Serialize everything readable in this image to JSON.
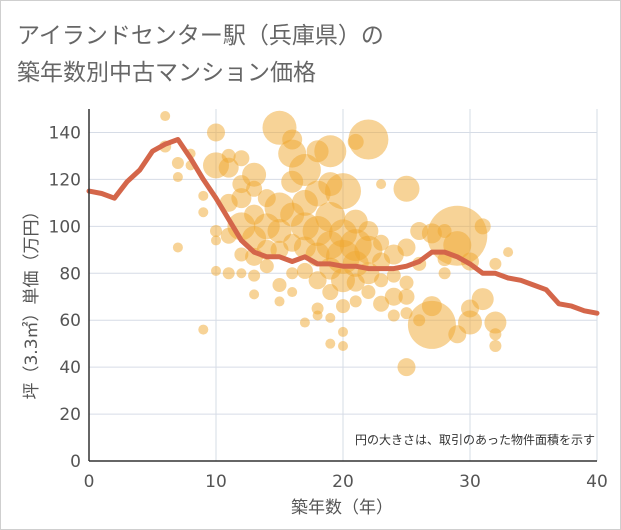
{
  "header": {
    "title_line1": "アイランドセンター駅（兵庫県）の",
    "title_line2": "築年数別中古マンション価格"
  },
  "chart_data": {
    "type": "scatter",
    "title": "アイランドセンター駅（兵庫県）の築年数別中古マンション価格",
    "xlabel": "築年数（年）",
    "ylabel": "坪（3.3㎡）単価（万円）",
    "xlim": [
      0,
      40
    ],
    "ylim": [
      0,
      150
    ],
    "xticks": [
      0,
      10,
      20,
      30,
      40
    ],
    "yticks": [
      0,
      20,
      40,
      60,
      80,
      100,
      120,
      140
    ],
    "grid": true,
    "annotation": "円の大きさは、取引のあった物件面積を示す",
    "colors": {
      "bubble": "#f0a830",
      "line": "#d4664a",
      "grid": "#d6dce6"
    },
    "series": [
      {
        "kind": "bubble",
        "points": [
          {
            "x": 6,
            "y": 147,
            "s": 5
          },
          {
            "x": 6,
            "y": 134,
            "s": 6
          },
          {
            "x": 7,
            "y": 127,
            "s": 6
          },
          {
            "x": 7,
            "y": 121,
            "s": 5
          },
          {
            "x": 7,
            "y": 91,
            "s": 5
          },
          {
            "x": 8,
            "y": 126,
            "s": 5
          },
          {
            "x": 8,
            "y": 131,
            "s": 5
          },
          {
            "x": 9,
            "y": 56,
            "s": 5
          },
          {
            "x": 9,
            "y": 106,
            "s": 5
          },
          {
            "x": 9,
            "y": 113,
            "s": 5
          },
          {
            "x": 10,
            "y": 140,
            "s": 9
          },
          {
            "x": 10,
            "y": 126,
            "s": 13
          },
          {
            "x": 10,
            "y": 98,
            "s": 6
          },
          {
            "x": 10,
            "y": 94,
            "s": 5
          },
          {
            "x": 10,
            "y": 81,
            "s": 5
          },
          {
            "x": 11,
            "y": 130,
            "s": 7
          },
          {
            "x": 11,
            "y": 125,
            "s": 10
          },
          {
            "x": 11,
            "y": 110,
            "s": 9
          },
          {
            "x": 11,
            "y": 96,
            "s": 8
          },
          {
            "x": 11,
            "y": 80,
            "s": 6
          },
          {
            "x": 12,
            "y": 129,
            "s": 8
          },
          {
            "x": 12,
            "y": 118,
            "s": 9
          },
          {
            "x": 12,
            "y": 112,
            "s": 10
          },
          {
            "x": 12,
            "y": 100,
            "s": 14
          },
          {
            "x": 12,
            "y": 88,
            "s": 7
          },
          {
            "x": 12,
            "y": 80,
            "s": 5
          },
          {
            "x": 13,
            "y": 122,
            "s": 12
          },
          {
            "x": 13,
            "y": 116,
            "s": 8
          },
          {
            "x": 13,
            "y": 105,
            "s": 10
          },
          {
            "x": 13,
            "y": 95,
            "s": 12
          },
          {
            "x": 13,
            "y": 87,
            "s": 9
          },
          {
            "x": 13,
            "y": 79,
            "s": 6
          },
          {
            "x": 13,
            "y": 71,
            "s": 5
          },
          {
            "x": 14,
            "y": 112,
            "s": 9
          },
          {
            "x": 14,
            "y": 100,
            "s": 13
          },
          {
            "x": 14,
            "y": 90,
            "s": 10
          },
          {
            "x": 14,
            "y": 83,
            "s": 7
          },
          {
            "x": 15,
            "y": 142,
            "s": 17
          },
          {
            "x": 15,
            "y": 108,
            "s": 15
          },
          {
            "x": 15,
            "y": 98,
            "s": 12
          },
          {
            "x": 15,
            "y": 90,
            "s": 9
          },
          {
            "x": 15,
            "y": 75,
            "s": 7
          },
          {
            "x": 15,
            "y": 68,
            "s": 5
          },
          {
            "x": 16,
            "y": 137,
            "s": 10
          },
          {
            "x": 16,
            "y": 131,
            "s": 14
          },
          {
            "x": 16,
            "y": 119,
            "s": 11
          },
          {
            "x": 16,
            "y": 105,
            "s": 12
          },
          {
            "x": 16,
            "y": 93,
            "s": 9
          },
          {
            "x": 16,
            "y": 80,
            "s": 6
          },
          {
            "x": 16,
            "y": 72,
            "s": 5
          },
          {
            "x": 17,
            "y": 124,
            "s": 16
          },
          {
            "x": 17,
            "y": 110,
            "s": 13
          },
          {
            "x": 17,
            "y": 100,
            "s": 14
          },
          {
            "x": 17,
            "y": 91,
            "s": 11
          },
          {
            "x": 17,
            "y": 81,
            "s": 8
          },
          {
            "x": 17,
            "y": 59,
            "s": 5
          },
          {
            "x": 18,
            "y": 132,
            "s": 11
          },
          {
            "x": 18,
            "y": 114,
            "s": 13
          },
          {
            "x": 18,
            "y": 98,
            "s": 15
          },
          {
            "x": 18,
            "y": 88,
            "s": 12
          },
          {
            "x": 18,
            "y": 77,
            "s": 9
          },
          {
            "x": 18,
            "y": 65,
            "s": 6
          },
          {
            "x": 18,
            "y": 62,
            "s": 5
          },
          {
            "x": 19,
            "y": 132,
            "s": 16
          },
          {
            "x": 19,
            "y": 118,
            "s": 12
          },
          {
            "x": 19,
            "y": 104,
            "s": 15
          },
          {
            "x": 19,
            "y": 92,
            "s": 14
          },
          {
            "x": 19,
            "y": 82,
            "s": 11
          },
          {
            "x": 19,
            "y": 72,
            "s": 8
          },
          {
            "x": 19,
            "y": 61,
            "s": 5
          },
          {
            "x": 19,
            "y": 50,
            "s": 5
          },
          {
            "x": 20,
            "y": 115,
            "s": 18
          },
          {
            "x": 20,
            "y": 97,
            "s": 14
          },
          {
            "x": 20,
            "y": 87,
            "s": 17
          },
          {
            "x": 20,
            "y": 77,
            "s": 12
          },
          {
            "x": 20,
            "y": 66,
            "s": 7
          },
          {
            "x": 20,
            "y": 55,
            "s": 5
          },
          {
            "x": 20,
            "y": 49,
            "s": 5
          },
          {
            "x": 21,
            "y": 136,
            "s": 8
          },
          {
            "x": 21,
            "y": 102,
            "s": 12
          },
          {
            "x": 21,
            "y": 92,
            "s": 16
          },
          {
            "x": 21,
            "y": 84,
            "s": 13
          },
          {
            "x": 21,
            "y": 76,
            "s": 9
          },
          {
            "x": 21,
            "y": 68,
            "s": 6
          },
          {
            "x": 22,
            "y": 137,
            "s": 20
          },
          {
            "x": 22,
            "y": 98,
            "s": 10
          },
          {
            "x": 22,
            "y": 90,
            "s": 14
          },
          {
            "x": 22,
            "y": 80,
            "s": 11
          },
          {
            "x": 22,
            "y": 72,
            "s": 7
          },
          {
            "x": 23,
            "y": 118,
            "s": 5
          },
          {
            "x": 23,
            "y": 93,
            "s": 8
          },
          {
            "x": 23,
            "y": 85,
            "s": 9
          },
          {
            "x": 23,
            "y": 77,
            "s": 7
          },
          {
            "x": 23,
            "y": 67,
            "s": 8
          },
          {
            "x": 24,
            "y": 88,
            "s": 10
          },
          {
            "x": 24,
            "y": 79,
            "s": 7
          },
          {
            "x": 24,
            "y": 70,
            "s": 9
          },
          {
            "x": 24,
            "y": 62,
            "s": 6
          },
          {
            "x": 25,
            "y": 116,
            "s": 13
          },
          {
            "x": 25,
            "y": 91,
            "s": 9
          },
          {
            "x": 25,
            "y": 76,
            "s": 7
          },
          {
            "x": 25,
            "y": 70,
            "s": 8
          },
          {
            "x": 25,
            "y": 63,
            "s": 6
          },
          {
            "x": 25,
            "y": 40,
            "s": 9
          },
          {
            "x": 26,
            "y": 98,
            "s": 9
          },
          {
            "x": 26,
            "y": 84,
            "s": 7
          },
          {
            "x": 26,
            "y": 60,
            "s": 6
          },
          {
            "x": 27,
            "y": 97,
            "s": 10
          },
          {
            "x": 27,
            "y": 66,
            "s": 10
          },
          {
            "x": 27,
            "y": 58,
            "s": 24
          },
          {
            "x": 28,
            "y": 98,
            "s": 7
          },
          {
            "x": 28,
            "y": 86,
            "s": 7
          },
          {
            "x": 28,
            "y": 80,
            "s": 6
          },
          {
            "x": 29,
            "y": 96,
            "s": 30
          },
          {
            "x": 29,
            "y": 92,
            "s": 14
          },
          {
            "x": 29,
            "y": 54,
            "s": 9
          },
          {
            "x": 30,
            "y": 85,
            "s": 9
          },
          {
            "x": 30,
            "y": 65,
            "s": 9
          },
          {
            "x": 30,
            "y": 59,
            "s": 12
          },
          {
            "x": 31,
            "y": 100,
            "s": 8
          },
          {
            "x": 31,
            "y": 69,
            "s": 11
          },
          {
            "x": 32,
            "y": 84,
            "s": 6
          },
          {
            "x": 32,
            "y": 59,
            "s": 11
          },
          {
            "x": 32,
            "y": 54,
            "s": 6
          },
          {
            "x": 32,
            "y": 49,
            "s": 6
          },
          {
            "x": 33,
            "y": 89,
            "s": 5
          }
        ]
      },
      {
        "kind": "line",
        "x": [
          0,
          1,
          2,
          3,
          4,
          5,
          6,
          7,
          8,
          9,
          10,
          11,
          12,
          13,
          14,
          15,
          16,
          17,
          18,
          19,
          20,
          21,
          22,
          23,
          24,
          25,
          26,
          27,
          28,
          29,
          30,
          31,
          32,
          33,
          34,
          35,
          36,
          37,
          38,
          39,
          40
        ],
        "y": [
          115,
          114,
          112,
          119,
          124,
          132,
          135,
          137,
          129,
          120,
          112,
          103,
          94,
          89,
          87,
          87,
          85,
          87,
          84,
          84,
          83,
          83,
          82,
          82,
          82,
          83,
          85,
          89,
          89,
          87,
          84,
          80,
          80,
          78,
          77,
          75,
          73,
          67,
          66,
          64,
          63
        ]
      }
    ]
  }
}
